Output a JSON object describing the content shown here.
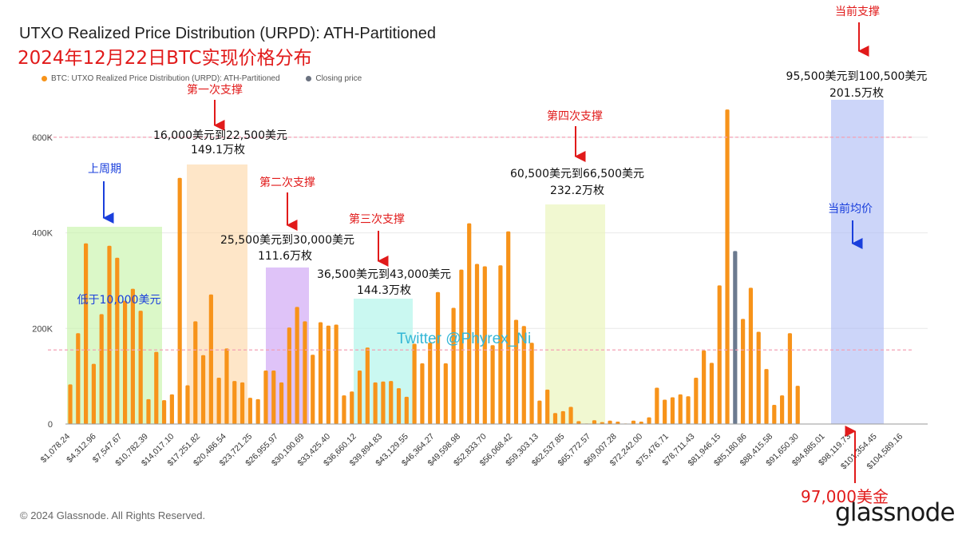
{
  "title": "UTXO Realized Price Distribution (URPD): ATH-Partitioned",
  "subtitle": "2024年12月22日BTC实现价格分布",
  "legend": [
    {
      "label": "BTC: UTXO Realized Price Distribution (URPD): ATH-Partitioned",
      "color": "#f7931a"
    },
    {
      "label": "Closing price",
      "color": "#6b7280"
    }
  ],
  "copyright": "© 2024 Glassnode. All Rights Reserved.",
  "logo_text": "glassnode",
  "watermark": "Twitter @Phyrex_Ni",
  "colors": {
    "bar": "#f7931a",
    "closing_bar": "#6b7a8f",
    "grid": "#e8e8e8",
    "dashed_line": "#f4a0b4",
    "annotation_red": "#e11a1a",
    "annotation_blue": "#1a3fdc"
  },
  "chart_data": {
    "type": "bar",
    "ylim": [
      0,
      680000
    ],
    "yticks": [
      0,
      200000,
      400000,
      600000
    ],
    "ytick_labels": [
      "0",
      "200K",
      "400K",
      "600K"
    ],
    "reference_lines": [
      600000,
      155000
    ],
    "xtick_labels": [
      "$1,078.24",
      "$4,312.96",
      "$7,547.67",
      "$10,782.39",
      "$14,017.10",
      "$17,251.82",
      "$20,486.54",
      "$23,721.25",
      "$26,955.97",
      "$30,190.69",
      "$33,425.40",
      "$36,660.12",
      "$39,894.83",
      "$43,129.55",
      "$46,364.27",
      "$49,598.98",
      "$52,833.70",
      "$56,068.42",
      "$59,303.13",
      "$62,537.85",
      "$65,772.57",
      "$69,007.28",
      "$72,242.00",
      "$75,476.71",
      "$78,711.43",
      "$81,946.15",
      "$85,180.86",
      "$88,415.58",
      "$91,650.30",
      "$94,885.01",
      "$98,119.73",
      "$101,354.45",
      "$104,589.16"
    ],
    "values": [
      83000,
      190000,
      378000,
      126000,
      230000,
      373000,
      348000,
      258000,
      283000,
      237000,
      52000,
      151000,
      50000,
      62000,
      515000,
      81000,
      215000,
      144000,
      271000,
      97000,
      158000,
      90000,
      87000,
      55000,
      52000,
      112000,
      112000,
      87000,
      202000,
      245000,
      215000,
      145000,
      213000,
      206000,
      208000,
      60000,
      68000,
      112000,
      160000,
      87000,
      89000,
      90000,
      75000,
      57000,
      168000,
      127000,
      170000,
      276000,
      127000,
      243000,
      323000,
      420000,
      335000,
      330000,
      165000,
      332000,
      403000,
      218000,
      205000,
      170000,
      49000,
      72000,
      23000,
      27000,
      36000,
      6000,
      1000,
      8000,
      4000,
      7000,
      5000,
      1000,
      7000,
      5000,
      14000,
      76000,
      51000,
      56000,
      62000,
      58000,
      97000,
      154000,
      128000,
      290000,
      658000,
      362000,
      220000,
      285000,
      193000,
      115000,
      40000,
      60000,
      190000,
      80000
    ],
    "closing_price_bar_index": 85,
    "series": [
      {
        "name": "BTC: UTXO Realized Price Distribution (URPD): ATH-Partitioned"
      }
    ]
  },
  "annotations": {
    "cycle": {
      "label": "上周期",
      "range": "低于10,000美元"
    },
    "support1": {
      "label": "第一次支撑",
      "range": "16,000美元到22,500美元",
      "amount": "149.1万枚"
    },
    "support2": {
      "label": "第二次支撑",
      "range": "25,500美元到30,000美元",
      "amount": "111.6万枚"
    },
    "support3": {
      "label": "第三次支撑",
      "range": "36,500美元到43,000美元",
      "amount": "144.3万枚"
    },
    "support4": {
      "label": "第四次支撑",
      "range": "60,500美元到66,500美元",
      "amount": "232.2万枚"
    },
    "current_support": {
      "label": "当前支撑",
      "range": "95,500美元到100,500美元",
      "amount": "201.5万枚"
    },
    "current_avg": {
      "label": "当前均价"
    },
    "price_97k": {
      "label": "97,000美金"
    }
  }
}
